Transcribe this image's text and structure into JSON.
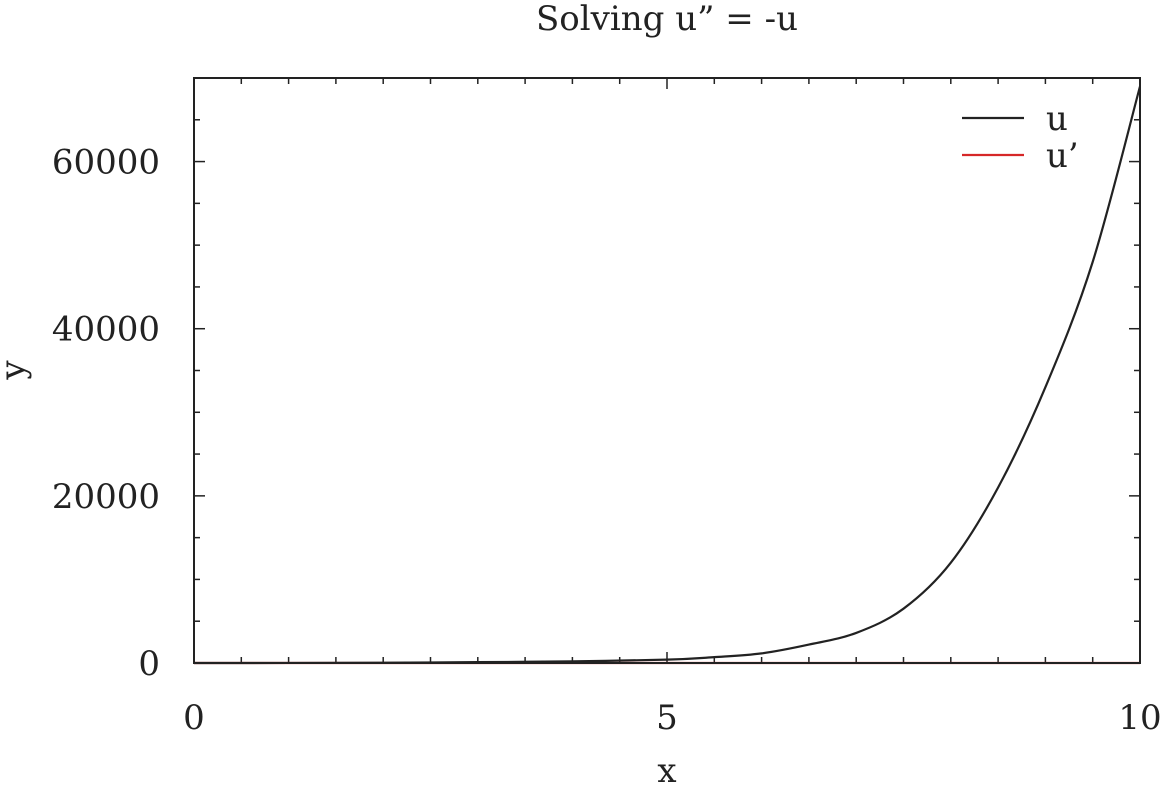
{
  "chart_data": {
    "type": "line",
    "title": "Solving u” = -u",
    "xlabel": "x",
    "ylabel": "y",
    "xlim": [
      0,
      10
    ],
    "ylim": [
      0,
      70000
    ],
    "xticks": [
      0,
      5,
      10
    ],
    "xtick_labels": [
      "0",
      "5",
      "10"
    ],
    "x_minor_step": 0.5,
    "yticks": [
      0,
      20000,
      40000,
      60000
    ],
    "ytick_labels": [
      "0",
      "20000",
      "40000",
      "60000"
    ],
    "y_minor_step": 5000,
    "grid": false,
    "legend_position": "top-right",
    "x": [
      0,
      1,
      2,
      3,
      4,
      5,
      5.5,
      6,
      6.5,
      7,
      7.5,
      8,
      8.5,
      9,
      9.5,
      10
    ],
    "series": [
      {
        "name": "u",
        "color": "#222222",
        "values": [
          0,
          5,
          30,
          100,
          200,
          400,
          700,
          1150,
          2200,
          3600,
          6500,
          12000,
          21000,
          33000,
          48000,
          69000
        ]
      },
      {
        "name": "u’",
        "color": "#d62728",
        "values": [
          0,
          0,
          0,
          0,
          0,
          0,
          0,
          0,
          0,
          0,
          0,
          0,
          0,
          0,
          0,
          0
        ]
      }
    ]
  }
}
